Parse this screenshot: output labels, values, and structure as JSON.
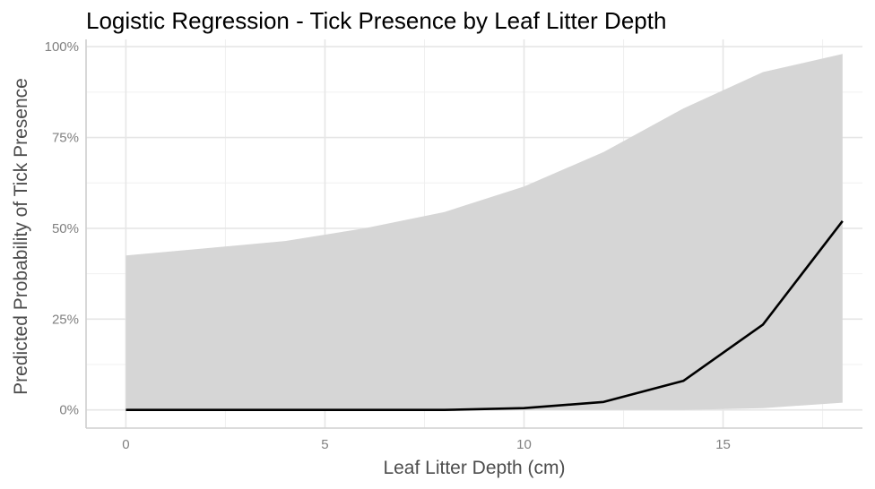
{
  "chart_data": {
    "type": "line",
    "title": "Logistic Regression - Tick Presence by Leaf Litter Depth",
    "xlabel": "Leaf Litter Depth (cm)",
    "ylabel": "Predicted Probability of Tick Presence",
    "xlim": [
      -1,
      18.5
    ],
    "ylim": [
      -0.05,
      1.02
    ],
    "x_ticks": [
      0,
      5,
      10,
      15
    ],
    "x_tick_labels": [
      "0",
      "5",
      "10",
      "15"
    ],
    "y_ticks": [
      0,
      0.25,
      0.5,
      0.75,
      1.0
    ],
    "y_tick_labels": [
      "0%",
      "25%",
      "50%",
      "75%",
      "100%"
    ],
    "grid": true,
    "series": [
      {
        "x": [
          0,
          2,
          4,
          6,
          8,
          10,
          12,
          14,
          16,
          18
        ],
        "fit": [
          0.0,
          0.0,
          0.0,
          0.0,
          0.0,
          0.005,
          0.022,
          0.08,
          0.235,
          0.52
        ],
        "lower": [
          0.0,
          0.0,
          0.0,
          0.0,
          0.0,
          0.0,
          0.0,
          0.0,
          0.005,
          0.02
        ],
        "upper": [
          0.425,
          0.445,
          0.465,
          0.5,
          0.545,
          0.615,
          0.71,
          0.83,
          0.93,
          0.98
        ],
        "line_color": "#000000",
        "ribbon_color": "#d6d6d6"
      }
    ]
  }
}
